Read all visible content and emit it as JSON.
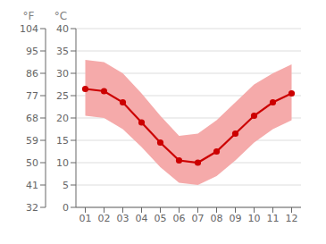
{
  "chart_data": {
    "type": "line",
    "x": [
      1,
      2,
      3,
      4,
      5,
      6,
      7,
      8,
      9,
      10,
      11,
      12
    ],
    "xlim": [
      0.5,
      12.5
    ],
    "xticks": [
      {
        "value": 1,
        "label": "01"
      },
      {
        "value": 2,
        "label": "02"
      },
      {
        "value": 3,
        "label": "03"
      },
      {
        "value": 4,
        "label": "04"
      },
      {
        "value": 5,
        "label": "05"
      },
      {
        "value": 6,
        "label": "06"
      },
      {
        "value": 7,
        "label": "07"
      },
      {
        "value": 8,
        "label": "08"
      },
      {
        "value": 9,
        "label": "09"
      },
      {
        "value": 10,
        "label": "10"
      },
      {
        "value": 11,
        "label": "11"
      },
      {
        "value": 12,
        "label": "12"
      }
    ],
    "ylim": [
      0,
      40
    ],
    "yticks": [
      0,
      5,
      10,
      15,
      20,
      25,
      30,
      35,
      40
    ],
    "y_label": "°C",
    "y2lim": [
      32,
      104
    ],
    "y2ticks": [
      32,
      41,
      50,
      59,
      68,
      77,
      86,
      95,
      104
    ],
    "y2_label": "°F",
    "grid": true,
    "series": [
      {
        "type": "band",
        "color": "#f5aaaa",
        "low": [
          20.5,
          20.0,
          17.5,
          13.5,
          9.0,
          5.5,
          5.0,
          7.0,
          10.5,
          14.5,
          17.5,
          19.5
        ],
        "high": [
          33.0,
          32.5,
          30.0,
          25.5,
          20.5,
          16.0,
          16.5,
          19.5,
          23.5,
          27.5,
          30.0,
          32.0
        ]
      },
      {
        "type": "line",
        "color": "#cc0000",
        "marker": "circle",
        "values": [
          26.5,
          26.0,
          23.5,
          19.0,
          14.5,
          10.5,
          10.0,
          12.5,
          16.5,
          20.5,
          23.5,
          25.5
        ]
      }
    ]
  }
}
